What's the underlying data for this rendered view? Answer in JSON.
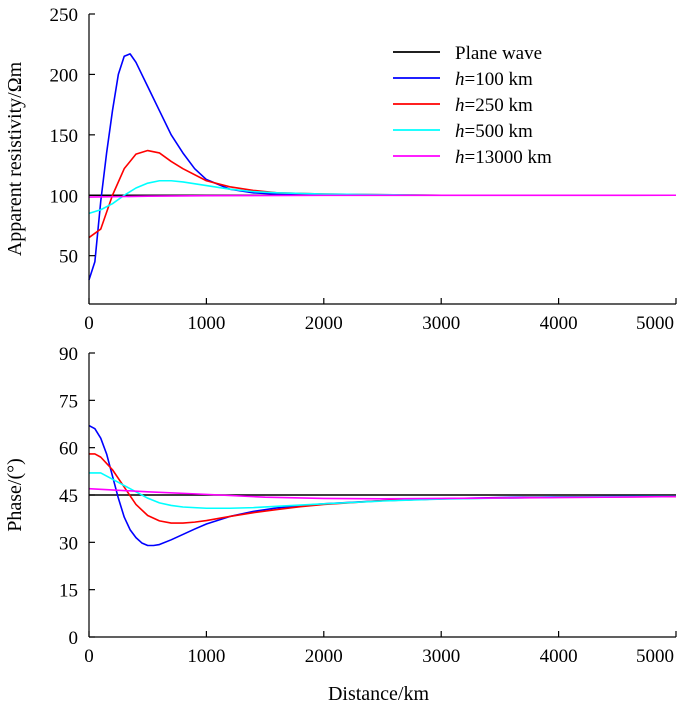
{
  "chart_data": [
    {
      "type": "line",
      "panel": "top",
      "xlabel": "",
      "ylabel": "Apparent resistivity/Ωm",
      "xlim": [
        0,
        5000
      ],
      "ylim": [
        10,
        250
      ],
      "xticks": [
        0,
        1000,
        2000,
        3000,
        4000,
        5000
      ],
      "yticks": [
        50,
        100,
        150,
        200,
        250
      ],
      "legend_position": "top-right",
      "series": [
        {
          "name": "Plane wave",
          "name_prefix": "",
          "name_rest": "Plane wave",
          "color": "#000000",
          "x": [
            0,
            5000
          ],
          "y": [
            100,
            100
          ]
        },
        {
          "name": "h=100 km",
          "name_prefix": "h",
          "name_rest": "=100 km",
          "color": "#0000ff",
          "x": [
            0,
            50,
            100,
            150,
            200,
            250,
            300,
            350,
            400,
            450,
            500,
            600,
            700,
            800,
            900,
            1000,
            1200,
            1400,
            1600,
            2000,
            2500,
            3000,
            5000
          ],
          "y": [
            30,
            45,
            95,
            135,
            170,
            200,
            215,
            217,
            210,
            200,
            190,
            170,
            150,
            135,
            122,
            113,
            105,
            102,
            101,
            100.5,
            100,
            100,
            100
          ]
        },
        {
          "name": "h=250 km",
          "name_prefix": "h",
          "name_rest": "=250 km",
          "color": "#ff0000",
          "x": [
            0,
            100,
            200,
            300,
            400,
            500,
            600,
            700,
            800,
            1000,
            1200,
            1400,
            1600,
            2000,
            3000,
            5000
          ],
          "y": [
            65,
            72,
            100,
            122,
            134,
            137,
            135,
            128,
            122,
            112,
            107,
            104,
            102,
            101,
            100,
            100
          ]
        },
        {
          "name": "h=500 km",
          "name_prefix": "h",
          "name_rest": "=500 km",
          "color": "#00ffff",
          "x": [
            0,
            100,
            200,
            300,
            400,
            500,
            600,
            700,
            800,
            1000,
            1200,
            1400,
            1600,
            2000,
            2500,
            3000,
            5000
          ],
          "y": [
            85,
            88,
            93,
            100,
            106,
            110,
            112,
            112,
            111,
            108,
            105,
            103,
            102,
            101,
            100.5,
            100,
            100
          ]
        },
        {
          "name": "h=13000 km",
          "name_prefix": "h",
          "name_rest": "=13000 km",
          "color": "#ff00ff",
          "x": [
            0,
            500,
            1000,
            2000,
            5000
          ],
          "y": [
            98.5,
            99.2,
            99.6,
            99.9,
            100
          ]
        }
      ]
    },
    {
      "type": "line",
      "panel": "bottom",
      "xlabel": "Distance/km",
      "ylabel": "Phase/(°)",
      "xlim": [
        0,
        5000
      ],
      "ylim": [
        0,
        90
      ],
      "xticks": [
        0,
        1000,
        2000,
        3000,
        4000,
        5000
      ],
      "yticks": [
        0,
        15,
        30,
        45,
        60,
        75,
        90
      ],
      "series": [
        {
          "name": "Plane wave",
          "color": "#000000",
          "x": [
            0,
            5000
          ],
          "y": [
            45,
            45
          ]
        },
        {
          "name": "h=100 km",
          "color": "#0000ff",
          "x": [
            0,
            50,
            100,
            150,
            200,
            250,
            300,
            350,
            400,
            450,
            500,
            550,
            600,
            700,
            800,
            900,
            1000,
            1200,
            1400,
            1600,
            1800,
            2000,
            2500,
            3000,
            3500,
            4000,
            4500,
            5000
          ],
          "y": [
            67,
            66,
            63,
            58,
            51,
            44,
            38,
            34,
            31.5,
            29.8,
            29,
            29,
            29.3,
            30.8,
            32.5,
            34.2,
            35.8,
            38.2,
            39.8,
            40.9,
            41.6,
            42.2,
            43.2,
            43.8,
            44.2,
            44.4,
            44.5,
            44.6
          ]
        },
        {
          "name": "h=250 km",
          "color": "#ff0000",
          "x": [
            0,
            50,
            100,
            150,
            200,
            300,
            400,
            500,
            600,
            700,
            800,
            900,
            1000,
            1200,
            1400,
            1600,
            1800,
            2000,
            2500,
            3000,
            4000,
            5000
          ],
          "y": [
            58,
            58,
            57,
            55,
            53,
            47.5,
            42,
            38.5,
            36.8,
            36.1,
            36.1,
            36.4,
            36.9,
            38.2,
            39.4,
            40.4,
            41.3,
            42,
            43.2,
            43.8,
            44.3,
            44.5
          ]
        },
        {
          "name": "h=500 km",
          "color": "#00ffff",
          "x": [
            0,
            100,
            200,
            300,
            400,
            500,
            600,
            700,
            800,
            1000,
            1200,
            1400,
            1600,
            2000,
            2500,
            3000,
            4000,
            5000
          ],
          "y": [
            52,
            52,
            50,
            48,
            46,
            44,
            42.5,
            41.7,
            41.2,
            40.8,
            40.8,
            41,
            41.4,
            42.2,
            43.1,
            43.7,
            44.3,
            44.6
          ]
        },
        {
          "name": "h=13000 km",
          "color": "#ff00ff",
          "x": [
            0,
            500,
            1000,
            1500,
            2000,
            2500,
            3000,
            4000,
            5000
          ],
          "y": [
            47,
            46,
            45.2,
            44.3,
            43.9,
            43.8,
            43.9,
            44.2,
            44.5
          ]
        }
      ]
    }
  ]
}
